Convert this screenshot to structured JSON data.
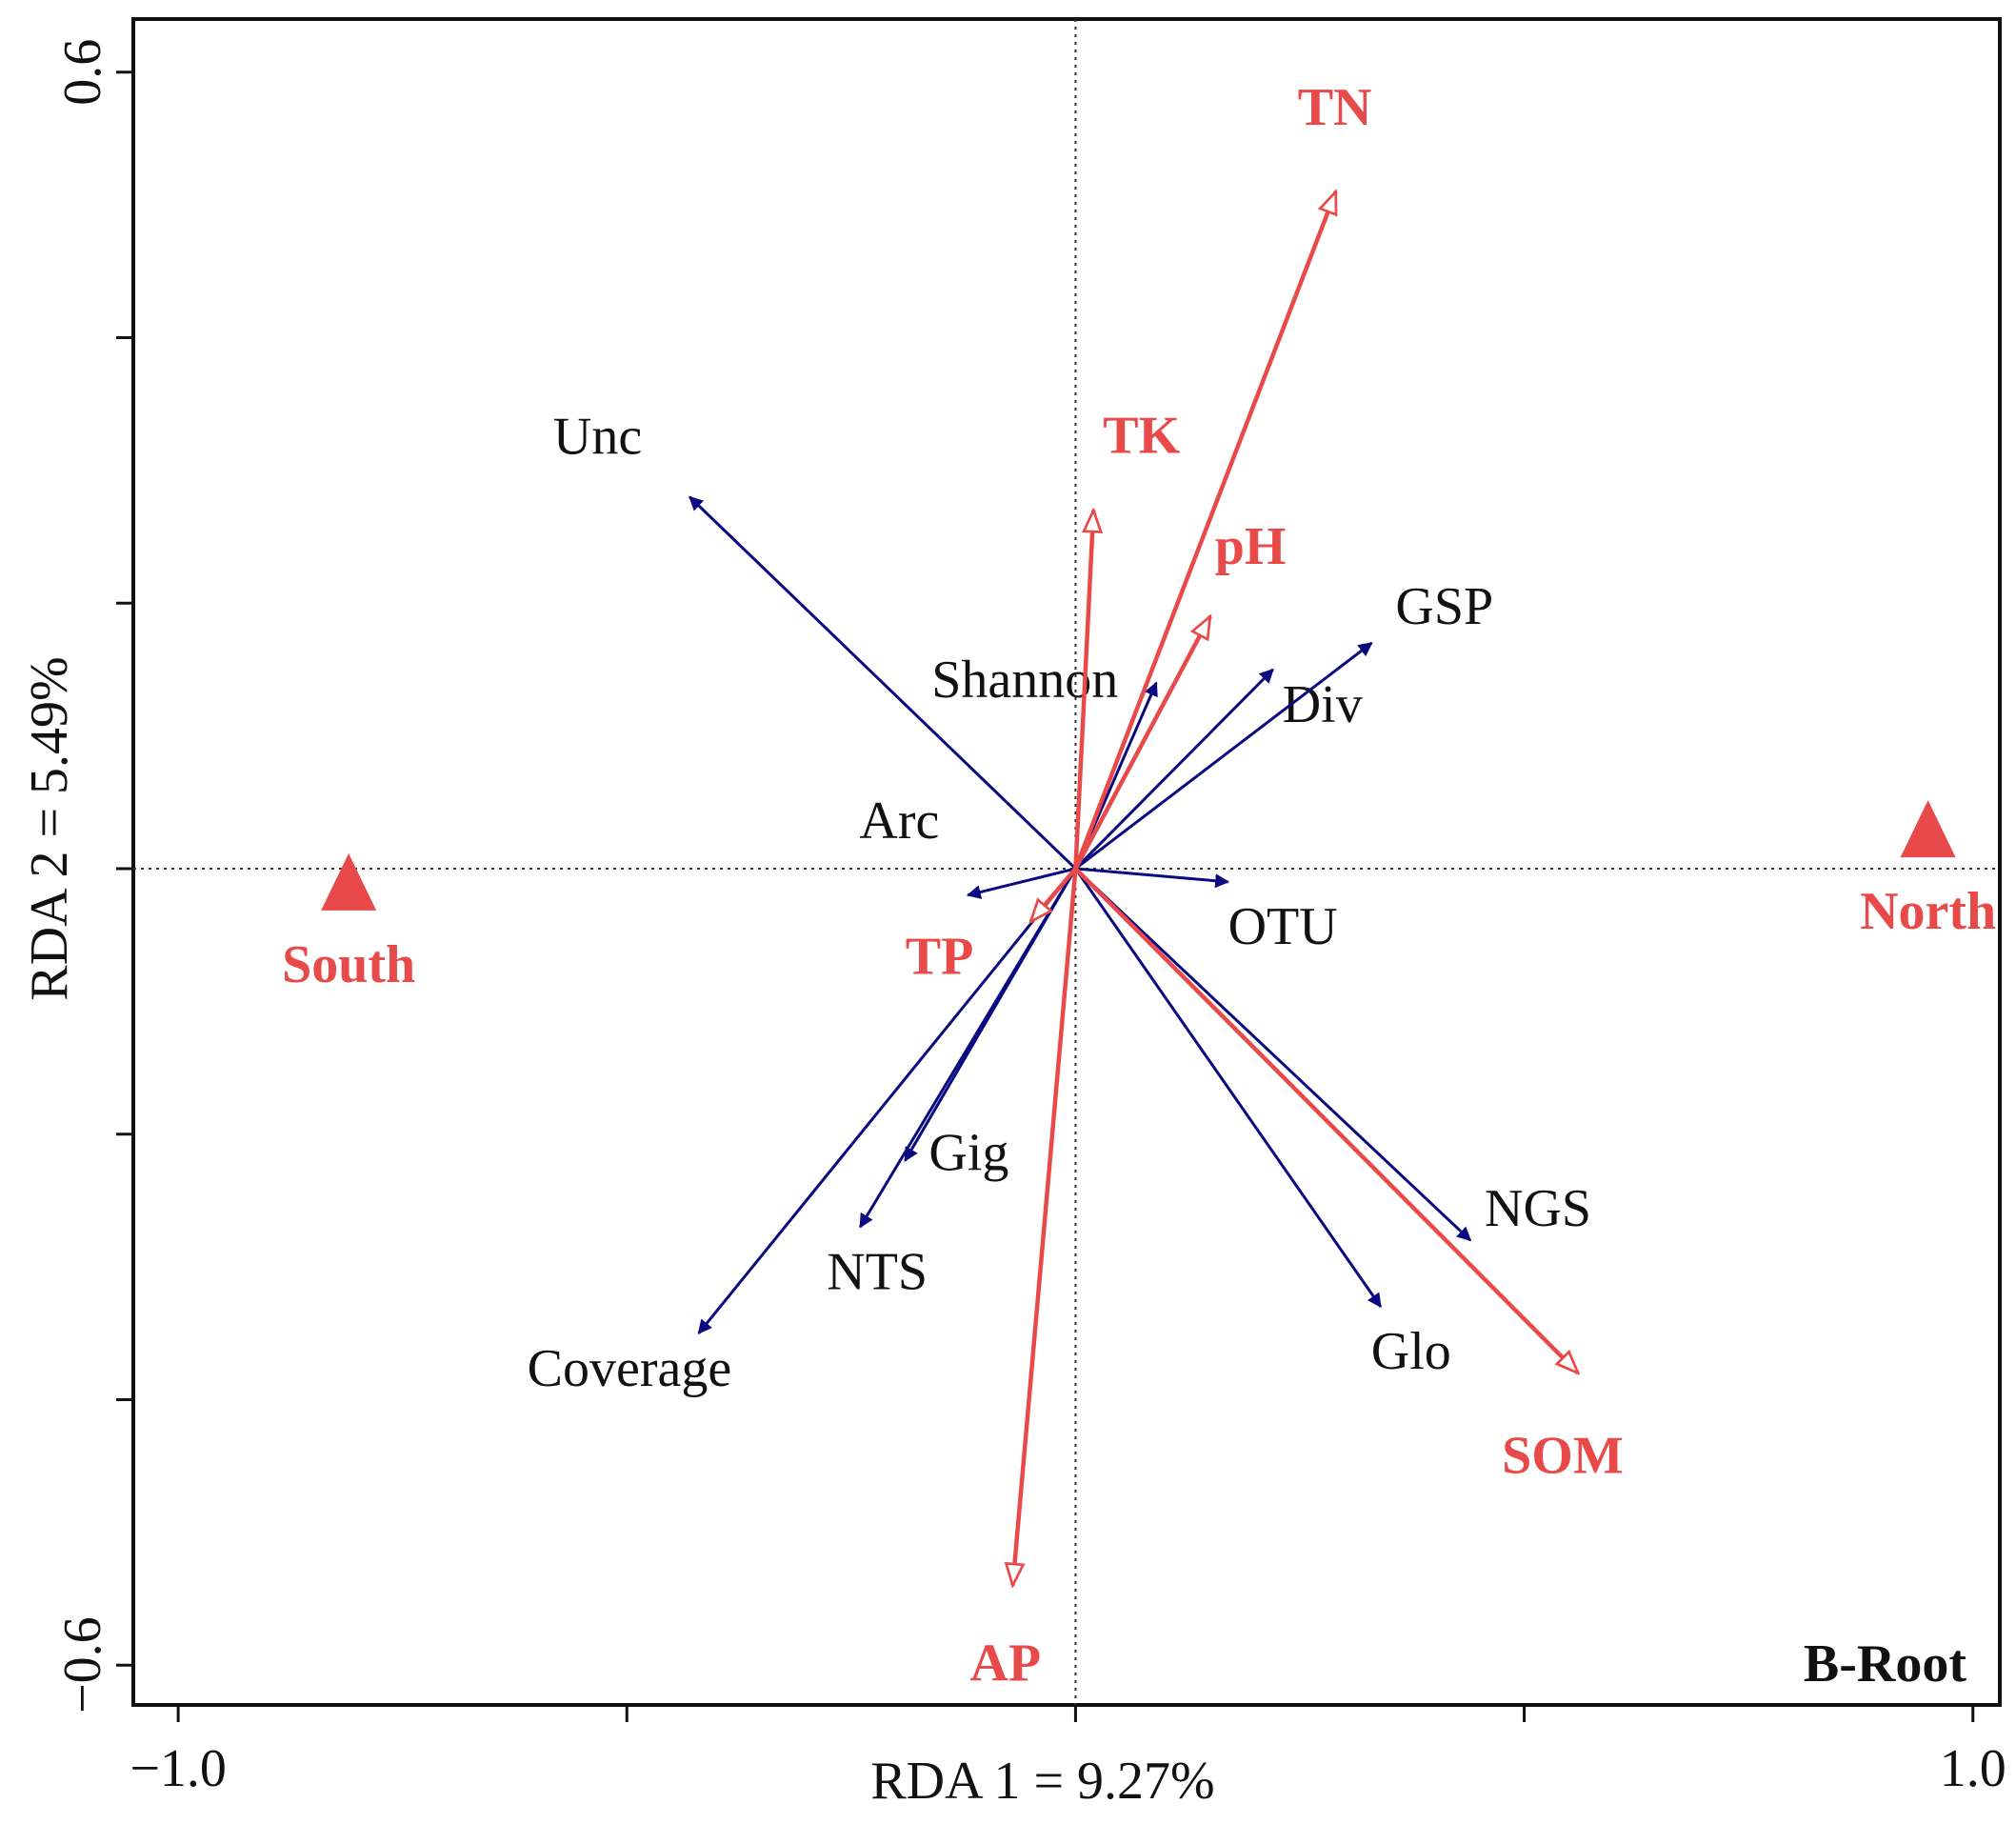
{
  "chart_data": {
    "type": "biplot",
    "panel_label": "B-Root",
    "xlabel": "RDA 1 = 9.27%",
    "ylabel": "RDA 2 = 5.49%",
    "xlim": [
      -1.05,
      1.03
    ],
    "ylim": [
      -0.63,
      0.64
    ],
    "x_tick_values": [
      -1.0,
      -0.5,
      0.0,
      0.5,
      1.0
    ],
    "x_tick_labels": [
      "−1.0",
      "",
      "",
      "",
      "1.0"
    ],
    "y_tick_values": [
      -0.6,
      -0.4,
      -0.2,
      0.0,
      0.2,
      0.4,
      0.6
    ],
    "y_tick_labels": [
      "−0.6",
      "",
      "",
      "",
      "",
      "",
      "0.6"
    ],
    "colors": {
      "response": "#0a0a80",
      "explanatory": "#e84a4a",
      "axis": "#111111"
    },
    "response_arrows": [
      {
        "name": "Unc",
        "x": -0.43,
        "y": 0.28
      },
      {
        "name": "Shannon",
        "x": 0.09,
        "y": 0.14
      },
      {
        "name": "Div",
        "x": 0.22,
        "y": 0.15
      },
      {
        "name": "GSP",
        "x": 0.33,
        "y": 0.17
      },
      {
        "name": "Arc",
        "x": -0.12,
        "y": -0.02
      },
      {
        "name": "OTU",
        "x": 0.17,
        "y": -0.01
      },
      {
        "name": "Gig",
        "x": -0.19,
        "y": -0.22
      },
      {
        "name": "NTS",
        "x": -0.24,
        "y": -0.27
      },
      {
        "name": "Coverage",
        "x": -0.42,
        "y": -0.35
      },
      {
        "name": "NGS",
        "x": 0.44,
        "y": -0.28
      },
      {
        "name": "Glo",
        "x": 0.34,
        "y": -0.33
      }
    ],
    "explanatory_arrows": [
      {
        "name": "TN",
        "x": 0.29,
        "y": 0.51
      },
      {
        "name": "TK",
        "x": 0.02,
        "y": 0.27
      },
      {
        "name": "pH",
        "x": 0.15,
        "y": 0.19
      },
      {
        "name": "TP",
        "x": -0.05,
        "y": -0.04
      },
      {
        "name": "AP",
        "x": -0.07,
        "y": -0.54
      },
      {
        "name": "SOM",
        "x": 0.56,
        "y": -0.38
      }
    ],
    "sites": [
      {
        "name": "South",
        "x": -0.81,
        "y": -0.01
      },
      {
        "name": "North",
        "x": 0.95,
        "y": 0.03
      }
    ]
  }
}
